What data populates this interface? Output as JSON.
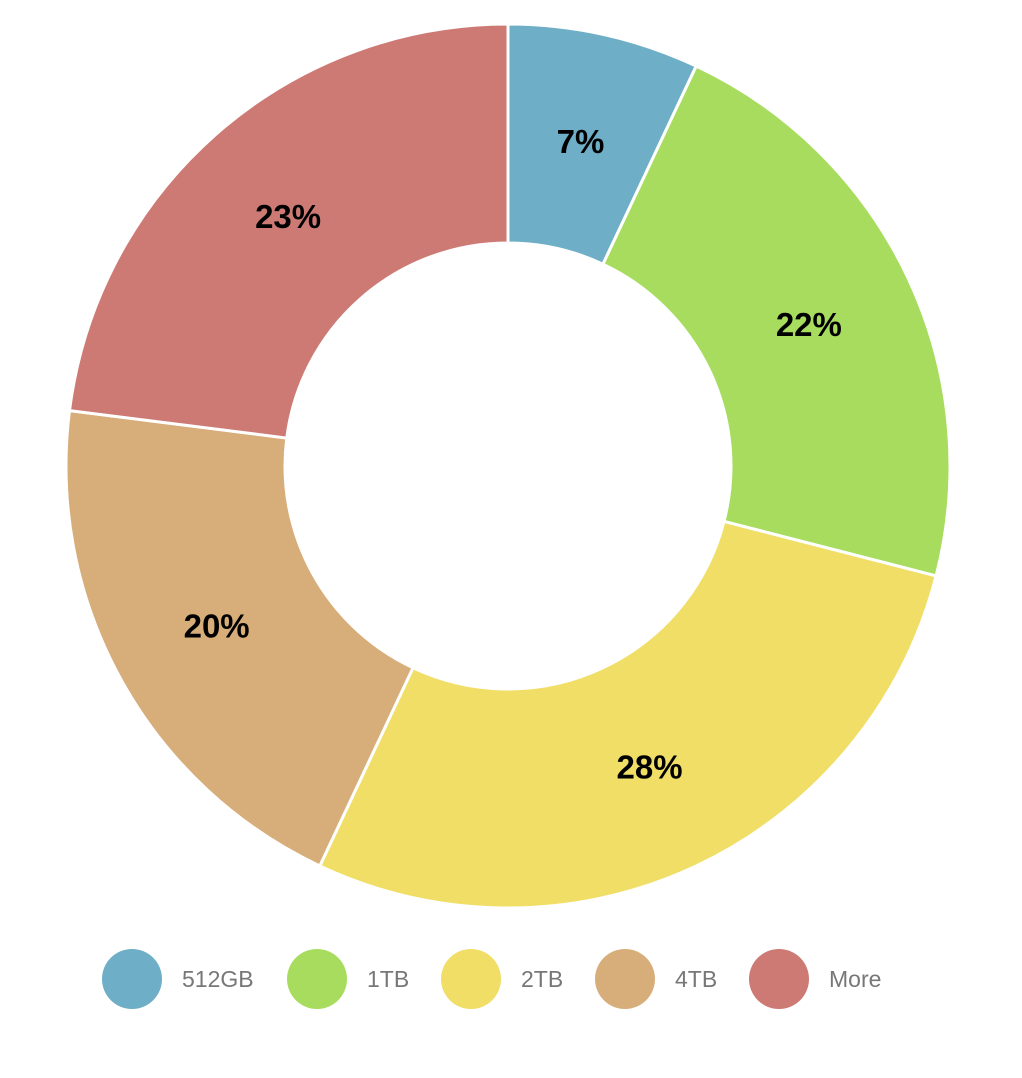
{
  "chart_data": {
    "type": "pie",
    "variant": "donut",
    "categories": [
      "512GB",
      "1TB",
      "2TB",
      "4TB",
      "More"
    ],
    "values": [
      7,
      22,
      28,
      20,
      23
    ],
    "labels": [
      "7%",
      "22%",
      "28%",
      "20%",
      "23%"
    ],
    "colors": [
      "#6eaec6",
      "#a8dc5f",
      "#f0de66",
      "#d7ad7a",
      "#cd7a75"
    ],
    "title": "",
    "legend": {
      "position": "bottom"
    }
  }
}
